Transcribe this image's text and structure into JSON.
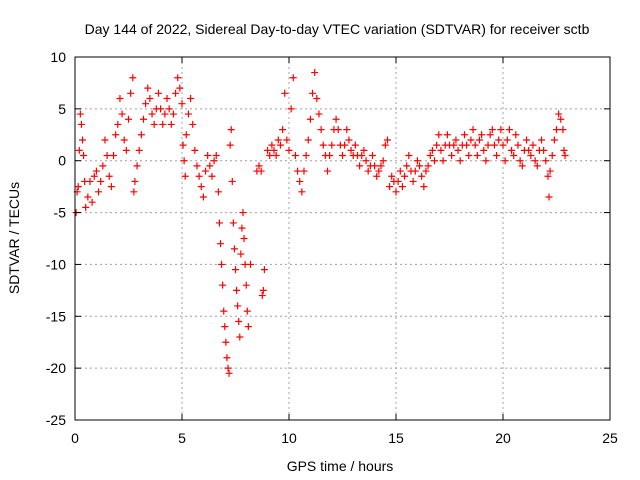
{
  "chart_data": {
    "type": "scatter",
    "title": "Day 144 of 2022, Sidereal Day-to-day VTEC variation (SDTVAR) for receiver sctb",
    "xlabel": "GPS time / hours",
    "ylabel": "SDTVAR / TECUs",
    "xlim": [
      0,
      25
    ],
    "ylim": [
      -25,
      10
    ],
    "xticks": [
      0,
      5,
      10,
      15,
      20,
      25
    ],
    "yticks": [
      -25,
      -20,
      -15,
      -10,
      -5,
      0,
      5,
      10
    ],
    "grid": true,
    "marker": "+",
    "marker_color": "#ff0000",
    "series": [
      {
        "name": "SDTVAR",
        "points": [
          [
            0.05,
            -5.0
          ],
          [
            0.1,
            -3.0
          ],
          [
            0.15,
            -2.5
          ],
          [
            0.2,
            1.0
          ],
          [
            0.25,
            4.5
          ],
          [
            0.3,
            3.5
          ],
          [
            0.35,
            2.0
          ],
          [
            0.4,
            0.5
          ],
          [
            0.45,
            -2.0
          ],
          [
            0.5,
            -4.5
          ],
          [
            0.6,
            -3.5
          ],
          [
            0.7,
            -2.0
          ],
          [
            0.8,
            -4.0
          ],
          [
            0.9,
            -1.5
          ],
          [
            1.0,
            -1.0
          ],
          [
            1.1,
            -3.0
          ],
          [
            1.2,
            -2.0
          ],
          [
            1.3,
            -0.5
          ],
          [
            1.4,
            2.0
          ],
          [
            1.5,
            0.5
          ],
          [
            1.6,
            -1.5
          ],
          [
            1.7,
            -2.5
          ],
          [
            1.8,
            0.5
          ],
          [
            1.9,
            2.5
          ],
          [
            2.0,
            3.5
          ],
          [
            2.1,
            6.0
          ],
          [
            2.2,
            4.5
          ],
          [
            2.3,
            2.0
          ],
          [
            2.4,
            1.0
          ],
          [
            2.5,
            4.0
          ],
          [
            2.6,
            6.5
          ],
          [
            2.7,
            8.0
          ],
          [
            2.75,
            -3.0
          ],
          [
            2.8,
            -2.0
          ],
          [
            2.9,
            -0.5
          ],
          [
            3.0,
            1.0
          ],
          [
            3.1,
            2.5
          ],
          [
            3.2,
            4.0
          ],
          [
            3.3,
            5.5
          ],
          [
            3.4,
            7.0
          ],
          [
            3.5,
            6.0
          ],
          [
            3.6,
            4.5
          ],
          [
            3.7,
            3.5
          ],
          [
            3.8,
            5.0
          ],
          [
            3.9,
            6.5
          ],
          [
            4.0,
            5.0
          ],
          [
            4.1,
            3.5
          ],
          [
            4.2,
            4.5
          ],
          [
            4.3,
            6.0
          ],
          [
            4.4,
            5.0
          ],
          [
            4.5,
            3.5
          ],
          [
            4.6,
            4.5
          ],
          [
            4.7,
            6.5
          ],
          [
            4.8,
            8.0
          ],
          [
            4.9,
            7.0
          ],
          [
            5.0,
            5.5
          ],
          [
            5.05,
            1.5
          ],
          [
            5.1,
            0.0
          ],
          [
            5.15,
            -1.5
          ],
          [
            5.2,
            2.5
          ],
          [
            5.3,
            4.5
          ],
          [
            5.4,
            6.0
          ],
          [
            5.5,
            3.5
          ],
          [
            5.6,
            1.0
          ],
          [
            5.7,
            -0.5
          ],
          [
            5.8,
            -1.5
          ],
          [
            5.9,
            -2.5
          ],
          [
            6.0,
            -3.5
          ],
          [
            6.1,
            -1.0
          ],
          [
            6.2,
            0.5
          ],
          [
            6.3,
            -0.5
          ],
          [
            6.4,
            -1.5
          ],
          [
            6.5,
            0.0
          ],
          [
            6.6,
            0.5
          ],
          [
            6.7,
            -3.0
          ],
          [
            6.75,
            -6.0
          ],
          [
            6.8,
            -8.0
          ],
          [
            6.85,
            -10.0
          ],
          [
            6.9,
            -12.0
          ],
          [
            6.95,
            -14.5
          ],
          [
            7.0,
            -16.0
          ],
          [
            7.05,
            -17.5
          ],
          [
            7.1,
            -19.0
          ],
          [
            7.15,
            -20.0
          ],
          [
            7.2,
            -20.5
          ],
          [
            7.25,
            1.5
          ],
          [
            7.3,
            3.0
          ],
          [
            7.35,
            -2.0
          ],
          [
            7.4,
            -6.0
          ],
          [
            7.45,
            -8.5
          ],
          [
            7.5,
            -10.5
          ],
          [
            7.55,
            -12.5
          ],
          [
            7.6,
            -14.0
          ],
          [
            7.65,
            -15.5
          ],
          [
            7.7,
            -17.0
          ],
          [
            7.75,
            -9.0
          ],
          [
            7.8,
            -6.5
          ],
          [
            7.85,
            -5.0
          ],
          [
            7.9,
            -7.5
          ],
          [
            7.95,
            -10.0
          ],
          [
            8.0,
            -12.0
          ],
          [
            8.05,
            -14.5
          ],
          [
            8.1,
            -16.0
          ],
          [
            8.2,
            -10.0
          ],
          [
            8.5,
            -1.0
          ],
          [
            8.6,
            -0.5
          ],
          [
            8.7,
            -1.0
          ],
          [
            8.75,
            -13.0
          ],
          [
            8.8,
            -12.5
          ],
          [
            8.85,
            -10.5
          ],
          [
            9.0,
            1.0
          ],
          [
            9.1,
            0.5
          ],
          [
            9.2,
            1.5
          ],
          [
            9.3,
            1.0
          ],
          [
            9.4,
            0.5
          ],
          [
            9.5,
            2.0
          ],
          [
            9.6,
            1.5
          ],
          [
            9.7,
            3.0
          ],
          [
            9.8,
            6.5
          ],
          [
            9.9,
            2.0
          ],
          [
            10.0,
            1.0
          ],
          [
            10.1,
            5.0
          ],
          [
            10.2,
            8.0
          ],
          [
            10.3,
            0.5
          ],
          [
            10.4,
            -1.0
          ],
          [
            10.5,
            -2.0
          ],
          [
            10.6,
            -3.0
          ],
          [
            10.7,
            -1.0
          ],
          [
            10.8,
            0.5
          ],
          [
            10.9,
            2.0
          ],
          [
            11.0,
            4.0
          ],
          [
            11.1,
            6.5
          ],
          [
            11.2,
            8.5
          ],
          [
            11.3,
            6.0
          ],
          [
            11.4,
            4.5
          ],
          [
            11.5,
            3.0
          ],
          [
            11.6,
            1.5
          ],
          [
            11.7,
            0.5
          ],
          [
            11.8,
            -1.0
          ],
          [
            11.9,
            0.5
          ],
          [
            12.0,
            1.5
          ],
          [
            12.1,
            3.0
          ],
          [
            12.2,
            4.0
          ],
          [
            12.3,
            3.0
          ],
          [
            12.4,
            1.5
          ],
          [
            12.5,
            0.5
          ],
          [
            12.6,
            1.5
          ],
          [
            12.7,
            3.0
          ],
          [
            12.8,
            2.0
          ],
          [
            12.9,
            1.0
          ],
          [
            13.0,
            0.5
          ],
          [
            13.1,
            1.5
          ],
          [
            13.2,
            0.5
          ],
          [
            13.3,
            -0.5
          ],
          [
            13.4,
            0.5
          ],
          [
            13.5,
            1.0
          ],
          [
            13.6,
            0.0
          ],
          [
            13.7,
            -1.0
          ],
          [
            13.8,
            -0.5
          ],
          [
            13.9,
            0.5
          ],
          [
            14.0,
            -0.5
          ],
          [
            14.1,
            -1.5
          ],
          [
            14.2,
            -1.0
          ],
          [
            14.3,
            -0.5
          ],
          [
            14.4,
            0.0
          ],
          [
            14.5,
            1.5
          ],
          [
            14.6,
            2.0
          ],
          [
            14.7,
            -2.5
          ],
          [
            14.8,
            -1.5
          ],
          [
            14.9,
            -2.0
          ],
          [
            15.0,
            -3.0
          ],
          [
            15.1,
            -2.0
          ],
          [
            15.2,
            -1.0
          ],
          [
            15.3,
            -2.5
          ],
          [
            15.4,
            -1.5
          ],
          [
            15.5,
            -0.5
          ],
          [
            15.6,
            0.5
          ],
          [
            15.7,
            -1.0
          ],
          [
            15.8,
            -2.0
          ],
          [
            15.9,
            -1.0
          ],
          [
            16.0,
            0.0
          ],
          [
            16.1,
            -0.5
          ],
          [
            16.2,
            -1.5
          ],
          [
            16.3,
            -2.5
          ],
          [
            16.4,
            -1.0
          ],
          [
            16.5,
            -0.5
          ],
          [
            16.6,
            0.5
          ],
          [
            16.7,
            1.0
          ],
          [
            16.8,
            0.0
          ],
          [
            16.9,
            1.5
          ],
          [
            17.0,
            2.5
          ],
          [
            17.1,
            1.0
          ],
          [
            17.2,
            0.0
          ],
          [
            17.3,
            1.5
          ],
          [
            17.4,
            2.5
          ],
          [
            17.5,
            1.5
          ],
          [
            17.6,
            0.5
          ],
          [
            17.7,
            1.5
          ],
          [
            17.8,
            2.0
          ],
          [
            17.9,
            1.0
          ],
          [
            18.0,
            0.0
          ],
          [
            18.1,
            1.5
          ],
          [
            18.2,
            2.5
          ],
          [
            18.3,
            1.5
          ],
          [
            18.4,
            0.5
          ],
          [
            18.5,
            2.0
          ],
          [
            18.6,
            3.0
          ],
          [
            18.7,
            1.5
          ],
          [
            18.8,
            0.5
          ],
          [
            18.9,
            2.0
          ],
          [
            19.0,
            2.5
          ],
          [
            19.1,
            1.0
          ],
          [
            19.2,
            0.0
          ],
          [
            19.3,
            1.5
          ],
          [
            19.4,
            2.5
          ],
          [
            19.5,
            3.0
          ],
          [
            19.6,
            1.5
          ],
          [
            19.7,
            0.5
          ],
          [
            19.8,
            2.0
          ],
          [
            19.9,
            3.0
          ],
          [
            20.0,
            1.5
          ],
          [
            20.1,
            0.0
          ],
          [
            20.2,
            2.0
          ],
          [
            20.3,
            3.0
          ],
          [
            20.4,
            1.0
          ],
          [
            20.5,
            0.5
          ],
          [
            20.6,
            2.5
          ],
          [
            20.7,
            1.5
          ],
          [
            20.8,
            0.0
          ],
          [
            20.9,
            -0.5
          ],
          [
            21.0,
            1.0
          ],
          [
            21.1,
            2.0
          ],
          [
            21.2,
            1.0
          ],
          [
            21.3,
            0.5
          ],
          [
            21.4,
            1.5
          ],
          [
            21.5,
            0.0
          ],
          [
            21.6,
            -0.5
          ],
          [
            21.7,
            1.0
          ],
          [
            21.8,
            2.0
          ],
          [
            21.9,
            1.0
          ],
          [
            22.0,
            0.0
          ],
          [
            22.1,
            -1.5
          ],
          [
            22.15,
            -3.5
          ],
          [
            22.2,
            -1.0
          ],
          [
            22.3,
            0.5
          ],
          [
            22.4,
            2.0
          ],
          [
            22.5,
            3.0
          ],
          [
            22.6,
            4.5
          ],
          [
            22.7,
            4.0
          ],
          [
            22.8,
            3.0
          ],
          [
            22.85,
            1.0
          ],
          [
            22.9,
            0.5
          ]
        ]
      }
    ]
  }
}
